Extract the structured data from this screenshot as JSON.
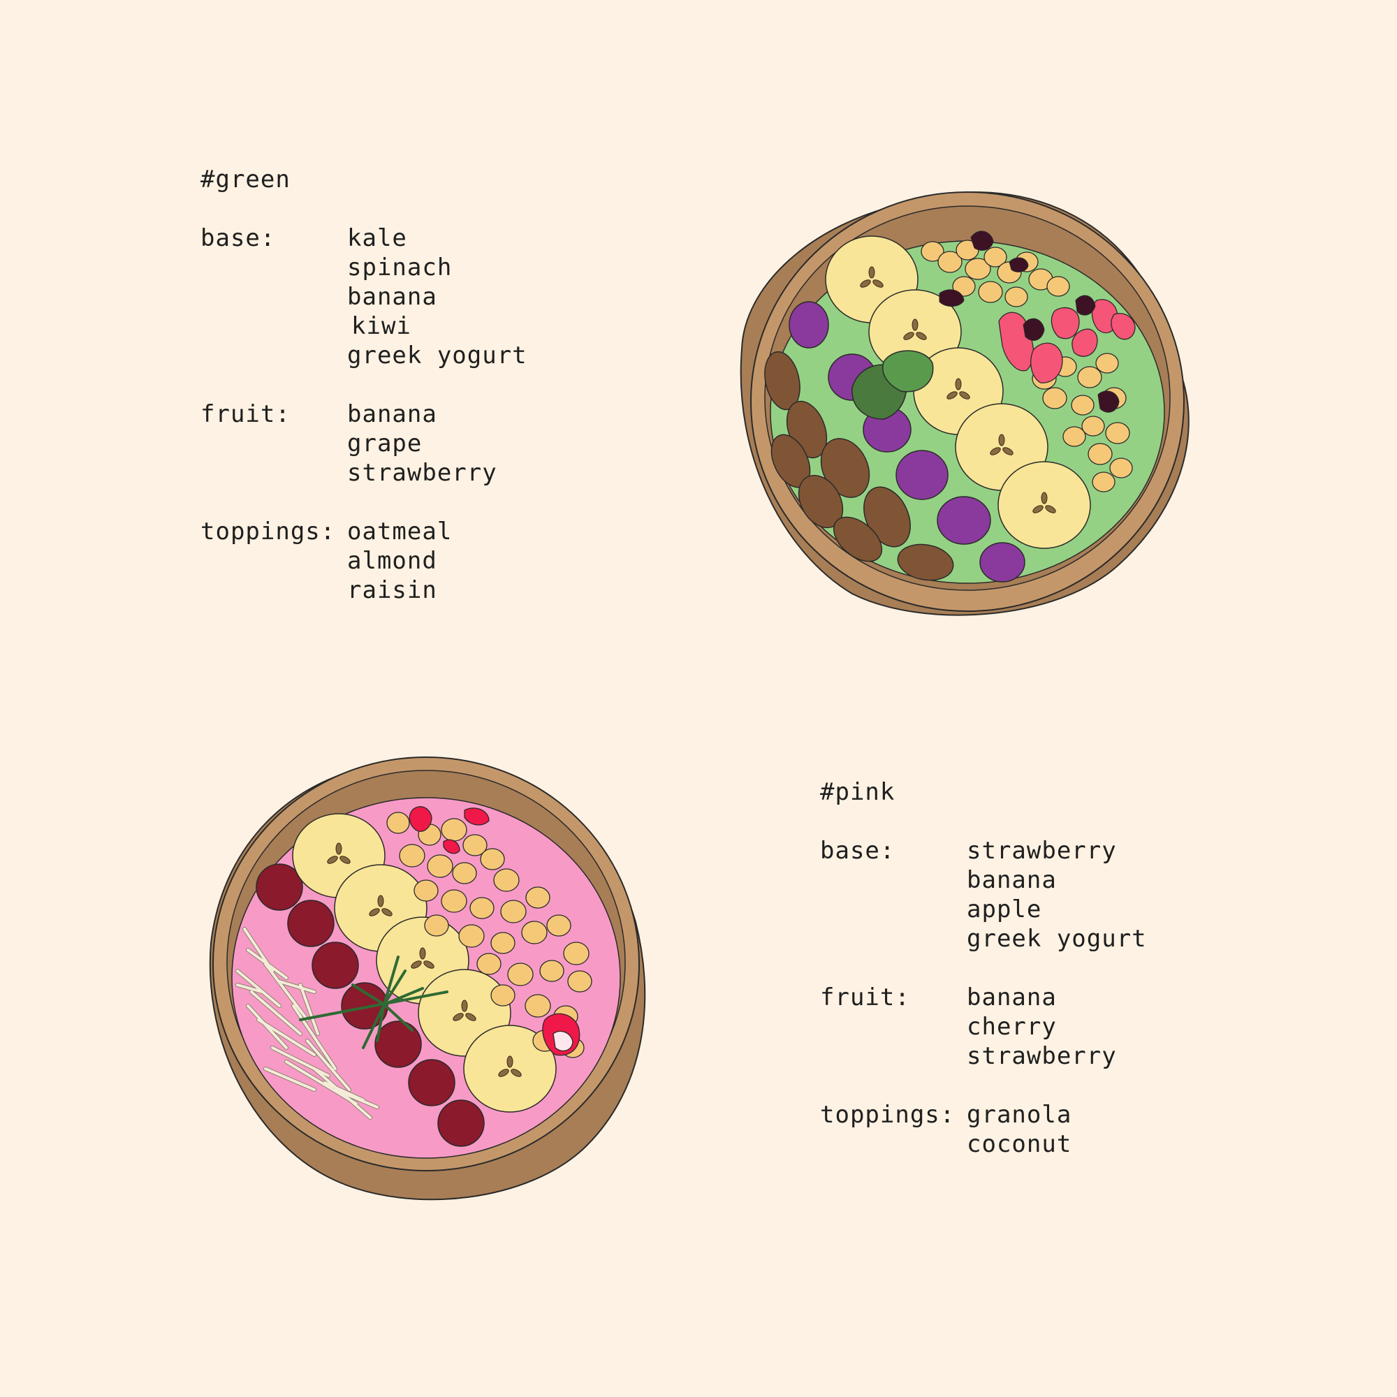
{
  "recipes": {
    "green": {
      "title": "#green",
      "base_label": "base:",
      "base": [
        "kale",
        "spinach",
        "banana",
        "kiwi",
        "greek yogurt"
      ],
      "fruit_label": "fruit:",
      "fruit": [
        "banana",
        "grape",
        "strawberry"
      ],
      "toppings_label": "toppings:",
      "toppings": [
        "oatmeal",
        "almond",
        "raisin"
      ]
    },
    "pink": {
      "title": "#pink",
      "base_label": "base:",
      "base": [
        "strawberry",
        "banana",
        "apple",
        "greek yogurt"
      ],
      "fruit_label": "fruit:",
      "fruit": [
        "banana",
        "cherry",
        "strawberry"
      ],
      "toppings_label": "toppings:",
      "toppings": [
        "granola",
        "coconut"
      ]
    }
  },
  "colors": {
    "background": "#fdf2e3",
    "bowl_wood": "#c4976a",
    "bowl_wood_dark": "#a87e56",
    "green_smoothie": "#95d185",
    "pink_smoothie": "#f89ac6",
    "banana": "#f8e597",
    "grape": "#8a3a9c",
    "almond": "#805535",
    "granola": "#f5c878",
    "strawberry": "#f55577",
    "raisin": "#3d1225",
    "cherry": "#8a1a2c",
    "mint_leaf": "#4a7a3d",
    "coconut": "#f4ecd8"
  },
  "icons": {
    "green_bowl": "smoothie-bowl-green-icon",
    "pink_bowl": "smoothie-bowl-pink-icon"
  }
}
